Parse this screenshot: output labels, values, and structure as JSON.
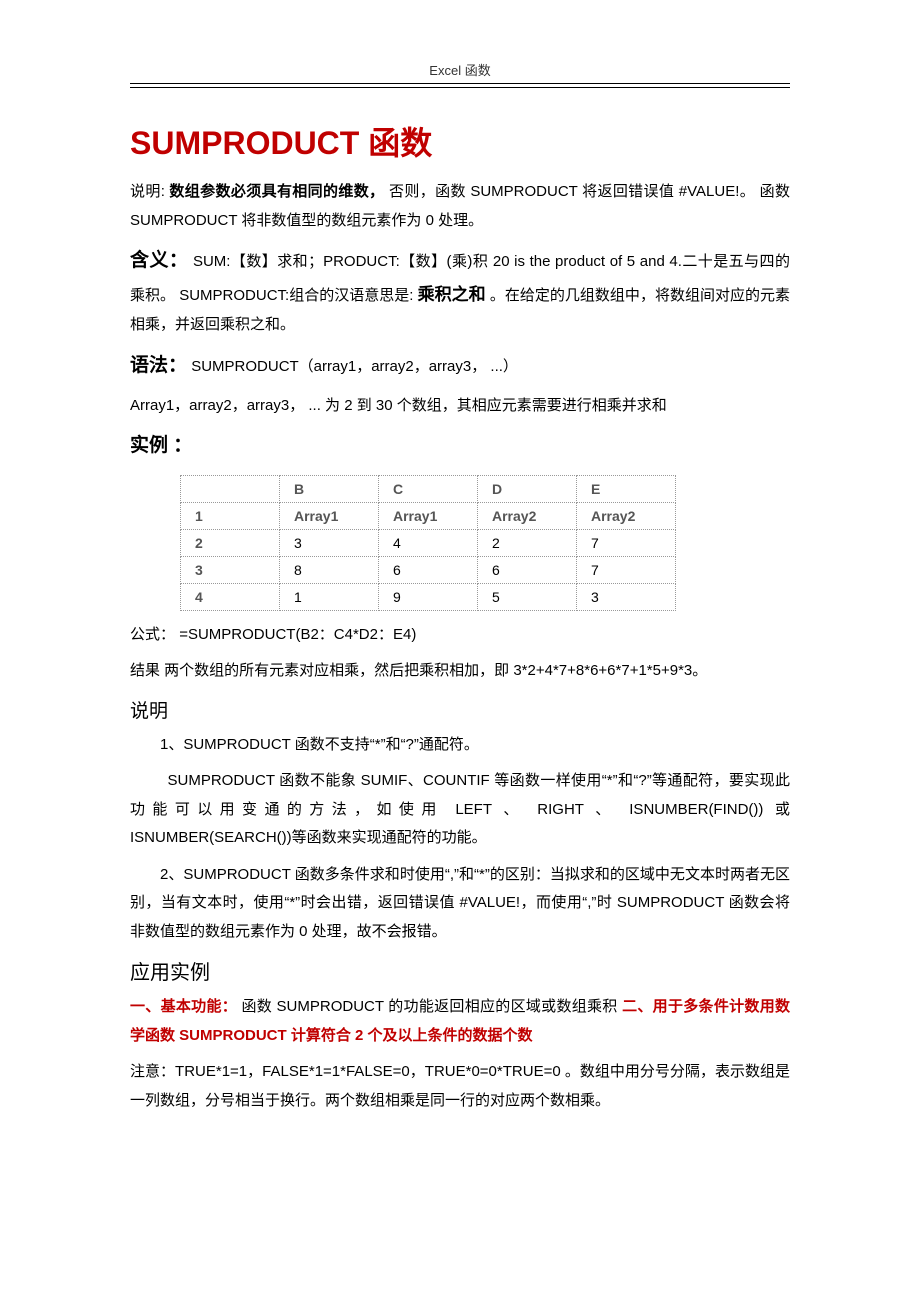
{
  "header": {
    "label": "Excel 函数"
  },
  "title": "SUMPRODUCT 函数",
  "desc": {
    "label": "说明:",
    "bold_part": "数组参数必须具有相同的维数，",
    "rest1": "否则，函数 SUMPRODUCT 将返回错误值 #VALUE!。  函数 SUMPRODUCT 将非数值型的数组元素作为 0 处理。"
  },
  "meaning": {
    "label": "含义：",
    "text1": "SUM:【数】求和；PRODUCT:【数】(乘)积 20 is the product of 5 and 4.二十是五与四的乘积。 SUMPRODUCT:组合的汉语意思是:",
    "emph": "乘积之和",
    "text2": "。在给定的几组数组中，将数组间对应的元素相乘，并返回乘积之和。"
  },
  "syntax": {
    "label": "语法：",
    "code": "SUMPRODUCT（array1，array2，array3，  ...）",
    "note": "Array1，array2，array3，   ... 为 2 到 30 个数组，其相应元素需要进行相乘并求和"
  },
  "example": {
    "label": "实例 ：",
    "table": {
      "cols": [
        "",
        "B",
        "C",
        "D",
        "E"
      ],
      "rows": [
        [
          "1",
          "Array1",
          "Array1",
          "Array2",
          "Array2"
        ],
        [
          "2",
          "3",
          "4",
          "2",
          "7"
        ],
        [
          "3",
          "8",
          "6",
          "6",
          "7"
        ],
        [
          "4",
          "1",
          "9",
          "5",
          "3"
        ]
      ]
    },
    "formula_label": "公式：",
    "formula": "=SUMPRODUCT(B2：C4*D2：E4)",
    "result": "结果 两个数组的所有元素对应相乘，然后把乘积相加，即 3*2+4*7+8*6+6*7+1*5+9*3。"
  },
  "explain": {
    "label": "说明",
    "p1": "1、SUMPRODUCT 函数不支持“*”和“?”通配符。",
    "p2": "SUMPRODUCT 函数不能象 SUMIF、COUNTIF 等函数一样使用“*”和“?”等通配符，要实现此功能可以用变通的方法，如使用 LEFT 、 RIGHT 、 ISNUMBER(FIND()) 或 ISNUMBER(SEARCH())等函数来实现通配符的功能。",
    "p3": "2、SUMPRODUCT 函数多条件求和时使用“,”和“*”的区别：当拟求和的区域中无文本时两者无区别，当有文本时，使用“*”时会出错，返回错误值 #VALUE!，而使用“,”时 SUMPRODUCT 函数会将非数值型的数组元素作为 0 处理，故不会报错。"
  },
  "apply": {
    "label": "应用实例",
    "line1a": "一、基本功能：",
    "line1b": "函数 SUMPRODUCT 的功能返回相应的区域或数组乘积",
    "line1c": "二、用于多条件计数用数学函数 SUMPRODUCT 计算符合 2 个及以上条件的数据个数",
    "note": "注意：TRUE*1=1，FALSE*1=1*FALSE=0，TRUE*0=0*TRUE=0 。数组中用分号分隔，表示数组是一列数组，分号相当于换行。两个数组相乘是同一行的对应两个数相乘。"
  }
}
